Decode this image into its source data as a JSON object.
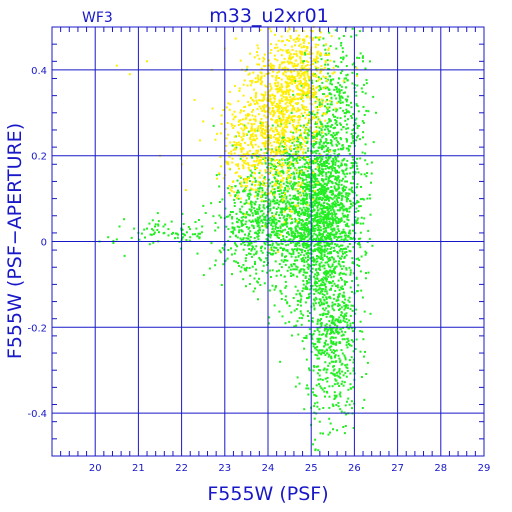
{
  "chart_data": {
    "type": "scatter",
    "title": "m33_u2xr01",
    "subtitle": "WF3",
    "xlabel": "F555W (PSF)",
    "ylabel": "F555W (PSF−APERTURE)",
    "xlim": [
      19,
      29
    ],
    "ylim": [
      -0.5,
      0.5
    ],
    "x_ticks": [
      "20",
      "21",
      "22",
      "23",
      "24",
      "25",
      "26",
      "27",
      "28",
      "29"
    ],
    "y_ticks": [
      "-0.4",
      "-0.2",
      "0",
      "0.2",
      "0.4"
    ],
    "grid": true,
    "colors": {
      "axes": "#1818c8",
      "grid": "#1818c8",
      "green_points": "#22ee22",
      "yellow_points": "#ffee00"
    },
    "series": [
      {
        "color": "green",
        "marker_hex": "#22ee22",
        "clusters": [
          {
            "center_x": 25.3,
            "center_y": 0.05,
            "spread_x": 0.45,
            "spread_y": 0.13
          },
          {
            "center_x": 24.6,
            "center_y": 0.08,
            "spread_x": 0.55,
            "spread_y": 0.09
          },
          {
            "center_x": 25.5,
            "center_y": -0.25,
            "spread_x": 0.3,
            "spread_y": 0.1
          },
          {
            "center_x": 23.6,
            "center_y": 0.04,
            "spread_x": 0.45,
            "spread_y": 0.06
          },
          {
            "center_x": 21.8,
            "center_y": 0.02,
            "spread_x": 0.5,
            "spread_y": 0.02
          },
          {
            "center_x": 25.6,
            "center_y": 0.3,
            "spread_x": 0.35,
            "spread_y": 0.1
          }
        ],
        "points": [
          [
            20.1,
            0.0
          ],
          [
            20.3,
            0.01
          ],
          [
            20.5,
            0.005
          ],
          [
            20.9,
            0.03
          ],
          [
            21.0,
            0.02
          ],
          [
            21.2,
            0.03
          ],
          [
            21.4,
            0.04
          ],
          [
            21.6,
            0.02
          ],
          [
            21.8,
            0.02
          ],
          [
            22.0,
            0.03
          ],
          [
            22.2,
            0.01
          ],
          [
            22.4,
            0.05
          ],
          [
            25.2,
            -0.42
          ],
          [
            25.4,
            -0.45
          ],
          [
            25.6,
            -0.44
          ],
          [
            25.8,
            -0.43
          ],
          [
            25.5,
            -0.38
          ],
          [
            24.0,
            -0.05
          ],
          [
            24.2,
            -0.08
          ],
          [
            24.5,
            -0.15
          ],
          [
            26.3,
            0.1
          ],
          [
            26.5,
            0.3
          ],
          [
            26.2,
            0.42
          ]
        ]
      },
      {
        "color": "yellow",
        "marker_hex": "#ffee00",
        "clusters": [
          {
            "center_x": 24.2,
            "center_y": 0.28,
            "spread_x": 0.45,
            "spread_y": 0.09
          },
          {
            "center_x": 24.8,
            "center_y": 0.38,
            "spread_x": 0.35,
            "spread_y": 0.07
          },
          {
            "center_x": 23.5,
            "center_y": 0.22,
            "spread_x": 0.35,
            "spread_y": 0.06
          }
        ],
        "points": [
          [
            20.5,
            0.41
          ],
          [
            20.8,
            0.39
          ],
          [
            21.5,
            0.2
          ],
          [
            22.0,
            0.18
          ],
          [
            22.3,
            0.33
          ],
          [
            22.5,
            0.28
          ],
          [
            22.7,
            0.4
          ],
          [
            21.2,
            0.42
          ],
          [
            22.1,
            0.12
          ],
          [
            23.0,
            0.45
          ]
        ]
      }
    ]
  }
}
